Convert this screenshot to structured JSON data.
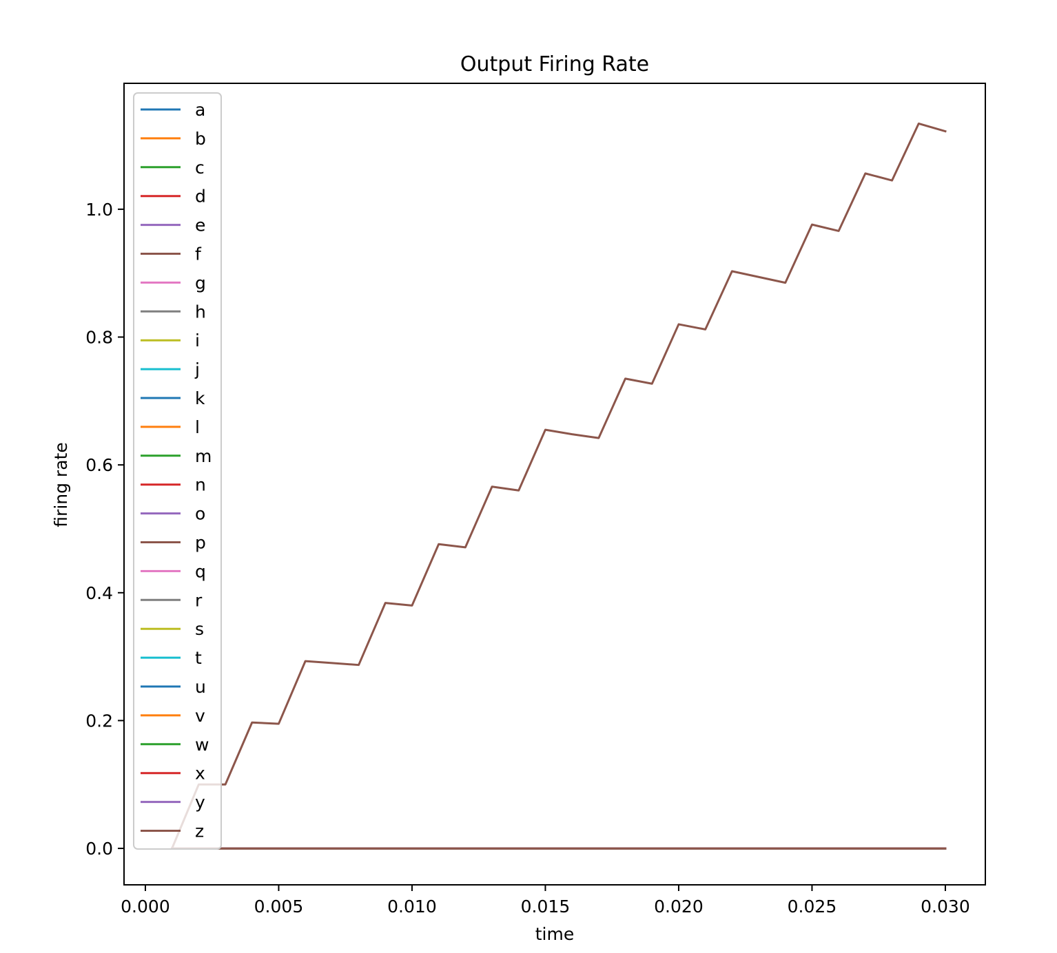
{
  "chart_data": {
    "type": "line",
    "title": "Output Firing Rate",
    "xlabel": "time",
    "ylabel": "firing rate",
    "xlim": [
      -0.0008,
      0.0315
    ],
    "ylim": [
      -0.057,
      1.197
    ],
    "xticks": [
      0.0,
      0.005,
      0.01,
      0.015,
      0.02,
      0.025,
      0.03
    ],
    "xtick_labels": [
      "0.000",
      "0.005",
      "0.010",
      "0.015",
      "0.020",
      "0.025",
      "0.030"
    ],
    "yticks": [
      0.0,
      0.2,
      0.4,
      0.6,
      0.8,
      1.0
    ],
    "ytick_labels": [
      "0.0",
      "0.2",
      "0.4",
      "0.6",
      "0.8",
      "1.0"
    ],
    "grid": false,
    "legend_position": "upper-left",
    "x": [
      0.001,
      0.002,
      0.003,
      0.004,
      0.005,
      0.006,
      0.007,
      0.008,
      0.009,
      0.01,
      0.011,
      0.012,
      0.013,
      0.014,
      0.015,
      0.016,
      0.017,
      0.018,
      0.019,
      0.02,
      0.021,
      0.022,
      0.023,
      0.024,
      0.025,
      0.026,
      0.027,
      0.028,
      0.029,
      0.03
    ],
    "series": [
      {
        "name": "a",
        "color": "#1f77b4",
        "values": [
          0,
          0,
          0,
          0,
          0,
          0,
          0,
          0,
          0,
          0,
          0,
          0,
          0,
          0,
          0,
          0,
          0,
          0,
          0,
          0,
          0,
          0,
          0,
          0,
          0,
          0,
          0,
          0,
          0,
          0
        ]
      },
      {
        "name": "b",
        "color": "#ff7f0e",
        "values": [
          0,
          0,
          0,
          0,
          0,
          0,
          0,
          0,
          0,
          0,
          0,
          0,
          0,
          0,
          0,
          0,
          0,
          0,
          0,
          0,
          0,
          0,
          0,
          0,
          0,
          0,
          0,
          0,
          0,
          0
        ]
      },
      {
        "name": "c",
        "color": "#2ca02c",
        "values": [
          0,
          0,
          0,
          0,
          0,
          0,
          0,
          0,
          0,
          0,
          0,
          0,
          0,
          0,
          0,
          0,
          0,
          0,
          0,
          0,
          0,
          0,
          0,
          0,
          0,
          0,
          0,
          0,
          0,
          0
        ]
      },
      {
        "name": "d",
        "color": "#d62728",
        "values": [
          0,
          0,
          0,
          0,
          0,
          0,
          0,
          0,
          0,
          0,
          0,
          0,
          0,
          0,
          0,
          0,
          0,
          0,
          0,
          0,
          0,
          0,
          0,
          0,
          0,
          0,
          0,
          0,
          0,
          0
        ]
      },
      {
        "name": "e",
        "color": "#9467bd",
        "values": [
          0,
          0,
          0,
          0,
          0,
          0,
          0,
          0,
          0,
          0,
          0,
          0,
          0,
          0,
          0,
          0,
          0,
          0,
          0,
          0,
          0,
          0,
          0,
          0,
          0,
          0,
          0,
          0,
          0,
          0
        ]
      },
      {
        "name": "f",
        "color": "#8c564b",
        "values": [
          0,
          0,
          0,
          0,
          0,
          0,
          0,
          0,
          0,
          0,
          0,
          0,
          0,
          0,
          0,
          0,
          0,
          0,
          0,
          0,
          0,
          0,
          0,
          0,
          0,
          0,
          0,
          0,
          0,
          0
        ]
      },
      {
        "name": "g",
        "color": "#e377c2",
        "values": [
          0,
          0,
          0,
          0,
          0,
          0,
          0,
          0,
          0,
          0,
          0,
          0,
          0,
          0,
          0,
          0,
          0,
          0,
          0,
          0,
          0,
          0,
          0,
          0,
          0,
          0,
          0,
          0,
          0,
          0
        ]
      },
      {
        "name": "h",
        "color": "#7f7f7f",
        "values": [
          0,
          0,
          0,
          0,
          0,
          0,
          0,
          0,
          0,
          0,
          0,
          0,
          0,
          0,
          0,
          0,
          0,
          0,
          0,
          0,
          0,
          0,
          0,
          0,
          0,
          0,
          0,
          0,
          0,
          0
        ]
      },
      {
        "name": "i",
        "color": "#bcbd22",
        "values": [
          0,
          0,
          0,
          0,
          0,
          0,
          0,
          0,
          0,
          0,
          0,
          0,
          0,
          0,
          0,
          0,
          0,
          0,
          0,
          0,
          0,
          0,
          0,
          0,
          0,
          0,
          0,
          0,
          0,
          0
        ]
      },
      {
        "name": "j",
        "color": "#17becf",
        "values": [
          0,
          0,
          0,
          0,
          0,
          0,
          0,
          0,
          0,
          0,
          0,
          0,
          0,
          0,
          0,
          0,
          0,
          0,
          0,
          0,
          0,
          0,
          0,
          0,
          0,
          0,
          0,
          0,
          0,
          0
        ]
      },
      {
        "name": "k",
        "color": "#1f77b4",
        "values": [
          0,
          0,
          0,
          0,
          0,
          0,
          0,
          0,
          0,
          0,
          0,
          0,
          0,
          0,
          0,
          0,
          0,
          0,
          0,
          0,
          0,
          0,
          0,
          0,
          0,
          0,
          0,
          0,
          0,
          0
        ]
      },
      {
        "name": "l",
        "color": "#ff7f0e",
        "values": [
          0,
          0,
          0,
          0,
          0,
          0,
          0,
          0,
          0,
          0,
          0,
          0,
          0,
          0,
          0,
          0,
          0,
          0,
          0,
          0,
          0,
          0,
          0,
          0,
          0,
          0,
          0,
          0,
          0,
          0
        ]
      },
      {
        "name": "m",
        "color": "#2ca02c",
        "values": [
          0,
          0,
          0,
          0,
          0,
          0,
          0,
          0,
          0,
          0,
          0,
          0,
          0,
          0,
          0,
          0,
          0,
          0,
          0,
          0,
          0,
          0,
          0,
          0,
          0,
          0,
          0,
          0,
          0,
          0
        ]
      },
      {
        "name": "n",
        "color": "#d62728",
        "values": [
          0,
          0,
          0,
          0,
          0,
          0,
          0,
          0,
          0,
          0,
          0,
          0,
          0,
          0,
          0,
          0,
          0,
          0,
          0,
          0,
          0,
          0,
          0,
          0,
          0,
          0,
          0,
          0,
          0,
          0
        ]
      },
      {
        "name": "o",
        "color": "#9467bd",
        "values": [
          0,
          0,
          0,
          0,
          0,
          0,
          0,
          0,
          0,
          0,
          0,
          0,
          0,
          0,
          0,
          0,
          0,
          0,
          0,
          0,
          0,
          0,
          0,
          0,
          0,
          0,
          0,
          0,
          0,
          0
        ]
      },
      {
        "name": "p",
        "color": "#8c564b",
        "values": [
          0,
          0.1,
          0.1,
          0.197,
          0.195,
          0.293,
          0.29,
          0.287,
          0.384,
          0.38,
          0.476,
          0.471,
          0.566,
          0.56,
          0.655,
          0.648,
          0.642,
          0.735,
          0.727,
          0.82,
          0.812,
          0.903,
          0.894,
          0.885,
          0.976,
          0.966,
          1.056,
          1.045,
          1.134,
          1.122
        ]
      },
      {
        "name": "q",
        "color": "#e377c2",
        "values": [
          0,
          0,
          0,
          0,
          0,
          0,
          0,
          0,
          0,
          0,
          0,
          0,
          0,
          0,
          0,
          0,
          0,
          0,
          0,
          0,
          0,
          0,
          0,
          0,
          0,
          0,
          0,
          0,
          0,
          0
        ]
      },
      {
        "name": "r",
        "color": "#7f7f7f",
        "values": [
          0,
          0,
          0,
          0,
          0,
          0,
          0,
          0,
          0,
          0,
          0,
          0,
          0,
          0,
          0,
          0,
          0,
          0,
          0,
          0,
          0,
          0,
          0,
          0,
          0,
          0,
          0,
          0,
          0,
          0
        ]
      },
      {
        "name": "s",
        "color": "#bcbd22",
        "values": [
          0,
          0,
          0,
          0,
          0,
          0,
          0,
          0,
          0,
          0,
          0,
          0,
          0,
          0,
          0,
          0,
          0,
          0,
          0,
          0,
          0,
          0,
          0,
          0,
          0,
          0,
          0,
          0,
          0,
          0
        ]
      },
      {
        "name": "t",
        "color": "#17becf",
        "values": [
          0,
          0,
          0,
          0,
          0,
          0,
          0,
          0,
          0,
          0,
          0,
          0,
          0,
          0,
          0,
          0,
          0,
          0,
          0,
          0,
          0,
          0,
          0,
          0,
          0,
          0,
          0,
          0,
          0,
          0
        ]
      },
      {
        "name": "u",
        "color": "#1f77b4",
        "values": [
          0,
          0,
          0,
          0,
          0,
          0,
          0,
          0,
          0,
          0,
          0,
          0,
          0,
          0,
          0,
          0,
          0,
          0,
          0,
          0,
          0,
          0,
          0,
          0,
          0,
          0,
          0,
          0,
          0,
          0
        ]
      },
      {
        "name": "v",
        "color": "#ff7f0e",
        "values": [
          0,
          0,
          0,
          0,
          0,
          0,
          0,
          0,
          0,
          0,
          0,
          0,
          0,
          0,
          0,
          0,
          0,
          0,
          0,
          0,
          0,
          0,
          0,
          0,
          0,
          0,
          0,
          0,
          0,
          0
        ]
      },
      {
        "name": "w",
        "color": "#2ca02c",
        "values": [
          0,
          0,
          0,
          0,
          0,
          0,
          0,
          0,
          0,
          0,
          0,
          0,
          0,
          0,
          0,
          0,
          0,
          0,
          0,
          0,
          0,
          0,
          0,
          0,
          0,
          0,
          0,
          0,
          0,
          0
        ]
      },
      {
        "name": "x",
        "color": "#d62728",
        "values": [
          0,
          0,
          0,
          0,
          0,
          0,
          0,
          0,
          0,
          0,
          0,
          0,
          0,
          0,
          0,
          0,
          0,
          0,
          0,
          0,
          0,
          0,
          0,
          0,
          0,
          0,
          0,
          0,
          0,
          0
        ]
      },
      {
        "name": "y",
        "color": "#9467bd",
        "values": [
          0,
          0,
          0,
          0,
          0,
          0,
          0,
          0,
          0,
          0,
          0,
          0,
          0,
          0,
          0,
          0,
          0,
          0,
          0,
          0,
          0,
          0,
          0,
          0,
          0,
          0,
          0,
          0,
          0,
          0
        ]
      },
      {
        "name": "z",
        "color": "#8c564b",
        "values": [
          0,
          0,
          0,
          0,
          0,
          0,
          0,
          0,
          0,
          0,
          0,
          0,
          0,
          0,
          0,
          0,
          0,
          0,
          0,
          0,
          0,
          0,
          0,
          0,
          0,
          0,
          0,
          0,
          0,
          0
        ]
      }
    ]
  }
}
